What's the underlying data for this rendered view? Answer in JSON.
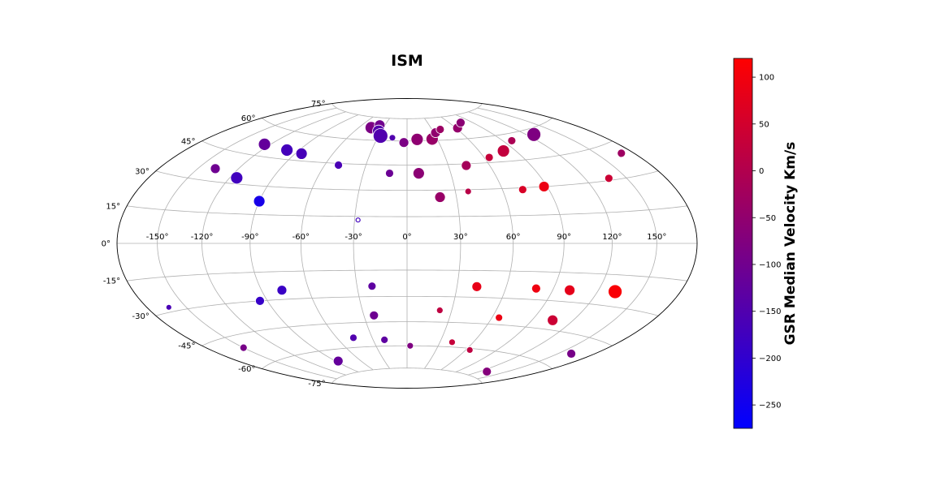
{
  "chart_data": {
    "type": "scatter",
    "projection": "hammer",
    "title": "ISM",
    "grid": true,
    "lon_ticks": [
      {
        "value": -150,
        "label": "-150°"
      },
      {
        "value": -120,
        "label": "-120°"
      },
      {
        "value": -90,
        "label": "-90°"
      },
      {
        "value": -60,
        "label": "-60°"
      },
      {
        "value": -30,
        "label": "-30°"
      },
      {
        "value": 0,
        "label": "0°"
      },
      {
        "value": 30,
        "label": "30°"
      },
      {
        "value": 60,
        "label": "60°"
      },
      {
        "value": 90,
        "label": "90°"
      },
      {
        "value": 120,
        "label": "120°"
      },
      {
        "value": 150,
        "label": "150°"
      }
    ],
    "lat_ticks": [
      {
        "value": -75,
        "label": "-75°"
      },
      {
        "value": -60,
        "label": "-60°"
      },
      {
        "value": -45,
        "label": "-45°"
      },
      {
        "value": -30,
        "label": "-30°"
      },
      {
        "value": -15,
        "label": "-15°"
      },
      {
        "value": 0,
        "label": "0°"
      },
      {
        "value": 15,
        "label": "15°"
      },
      {
        "value": 30,
        "label": "30°"
      },
      {
        "value": 45,
        "label": "45°"
      },
      {
        "value": 60,
        "label": "60°"
      },
      {
        "value": 75,
        "label": "75°"
      }
    ],
    "colorbar": {
      "label": "GSR Median Velocity Km/s",
      "min": -275,
      "max": 120,
      "colors": [
        "#0000ff",
        "#ff0000"
      ],
      "ticks": [
        {
          "value": 100,
          "label": "100"
        },
        {
          "value": 50,
          "label": "50"
        },
        {
          "value": 0,
          "label": "0"
        },
        {
          "value": -50,
          "label": "−50"
        },
        {
          "value": -100,
          "label": "−100"
        },
        {
          "value": -150,
          "label": "−150"
        },
        {
          "value": -200,
          "label": "−200"
        },
        {
          "value": -250,
          "label": "−250"
        }
      ]
    },
    "points": [
      {
        "lon": -45,
        "lat": 68,
        "v": -85,
        "size": 7.5
      },
      {
        "lon": -37,
        "lat": 70,
        "v": -100,
        "size": 6.5
      },
      {
        "lon": -33,
        "lat": 66,
        "v": -145,
        "size": 7.5
      },
      {
        "lon": -28,
        "lat": 63,
        "v": -150,
        "size": 9
      },
      {
        "lon": -15,
        "lat": 62,
        "v": -150,
        "size": 4
      },
      {
        "lon": -3,
        "lat": 59,
        "v": -85,
        "size": 6
      },
      {
        "lon": 10,
        "lat": 61,
        "v": -55,
        "size": 7.5
      },
      {
        "lon": 25,
        "lat": 61,
        "v": -40,
        "size": 7.5
      },
      {
        "lon": 32,
        "lat": 65,
        "v": -50,
        "size": 6
      },
      {
        "lon": 40,
        "lat": 67,
        "v": -35,
        "size": 5
      },
      {
        "lon": 62,
        "lat": 67,
        "v": -45,
        "size": 6
      },
      {
        "lon": 75,
        "lat": 70,
        "v": -60,
        "size": 5.5
      },
      {
        "lon": -125,
        "lat": 51,
        "v": -120,
        "size": 7.5
      },
      {
        "lon": -100,
        "lat": 50,
        "v": -170,
        "size": 7.5
      },
      {
        "lon": -85,
        "lat": 49,
        "v": -165,
        "size": 7
      },
      {
        "lon": -50,
        "lat": 44,
        "v": -160,
        "size": 5
      },
      {
        "lon": -12,
        "lat": 40,
        "v": -110,
        "size": 5
      },
      {
        "lon": 8,
        "lat": 40,
        "v": -60,
        "size": 7
      },
      {
        "lon": 43,
        "lat": 44,
        "v": -20,
        "size": 6
      },
      {
        "lon": 64,
        "lat": 48,
        "v": 30,
        "size": 5
      },
      {
        "lon": 80,
        "lat": 51,
        "v": 25,
        "size": 7.5
      },
      {
        "lon": 98,
        "lat": 56,
        "v": -10,
        "size": 5
      },
      {
        "lon": 127,
        "lat": 57,
        "v": -80,
        "size": 8.5
      },
      {
        "lon": -137,
        "lat": 36,
        "v": -105,
        "size": 6
      },
      {
        "lon": -115,
        "lat": 33,
        "v": -175,
        "size": 7.5
      },
      {
        "lon": -90,
        "lat": 22,
        "v": -240,
        "size": 7
      },
      {
        "lon": 20,
        "lat": 26,
        "v": -40,
        "size": 6.5
      },
      {
        "lon": 38,
        "lat": 29,
        "v": 10,
        "size": 4
      },
      {
        "lon": 73,
        "lat": 29,
        "v": 60,
        "size": 5
      },
      {
        "lon": 88,
        "lat": 30,
        "v": 90,
        "size": 6.5
      },
      {
        "lon": 137,
        "lat": 31,
        "v": 40,
        "size": 5
      },
      {
        "lon": 170,
        "lat": 40,
        "v": -30,
        "size": 5
      },
      {
        "lon": -28,
        "lat": 13,
        "v": -175,
        "size": 2.5,
        "hollow": true
      },
      {
        "lon": -163,
        "lat": -28,
        "v": -160,
        "size": 3.5
      },
      {
        "lon": -95,
        "lat": -30,
        "v": -190,
        "size": 5.5
      },
      {
        "lon": -77,
        "lat": -25,
        "v": -185,
        "size": 6
      },
      {
        "lon": -21,
        "lat": -24,
        "v": -130,
        "size": 5
      },
      {
        "lon": 42,
        "lat": -24,
        "v": 85,
        "size": 6
      },
      {
        "lon": 79,
        "lat": -24,
        "v": 95,
        "size": 5.5
      },
      {
        "lon": 101,
        "lat": -24,
        "v": 80,
        "size": 6.5
      },
      {
        "lon": 132,
        "lat": -23,
        "v": 110,
        "size": 8.5
      },
      {
        "lon": -23,
        "lat": -41,
        "v": -105,
        "size": 5.5
      },
      {
        "lon": 22,
        "lat": -38,
        "v": 20,
        "size": 4
      },
      {
        "lon": 65,
        "lat": -41,
        "v": 90,
        "size": 4.5
      },
      {
        "lon": 105,
        "lat": -40,
        "v": 40,
        "size": 6.5
      },
      {
        "lon": -150,
        "lat": -51,
        "v": -90,
        "size": 4.5
      },
      {
        "lon": -46,
        "lat": -54,
        "v": -150,
        "size": 4.5
      },
      {
        "lon": -20,
        "lat": -56,
        "v": -130,
        "size": 4.5
      },
      {
        "lon": 3,
        "lat": -60,
        "v": -80,
        "size": 4
      },
      {
        "lon": 41,
        "lat": -57,
        "v": 30,
        "size": 4
      },
      {
        "lon": 64,
        "lat": -61,
        "v": 20,
        "size": 4
      },
      {
        "lon": 161,
        "lat": -53,
        "v": -90,
        "size": 5.5
      },
      {
        "lon": -87,
        "lat": -67,
        "v": -120,
        "size": 6
      },
      {
        "lon": 129,
        "lat": -71,
        "v": -70,
        "size": 5.5
      }
    ]
  }
}
